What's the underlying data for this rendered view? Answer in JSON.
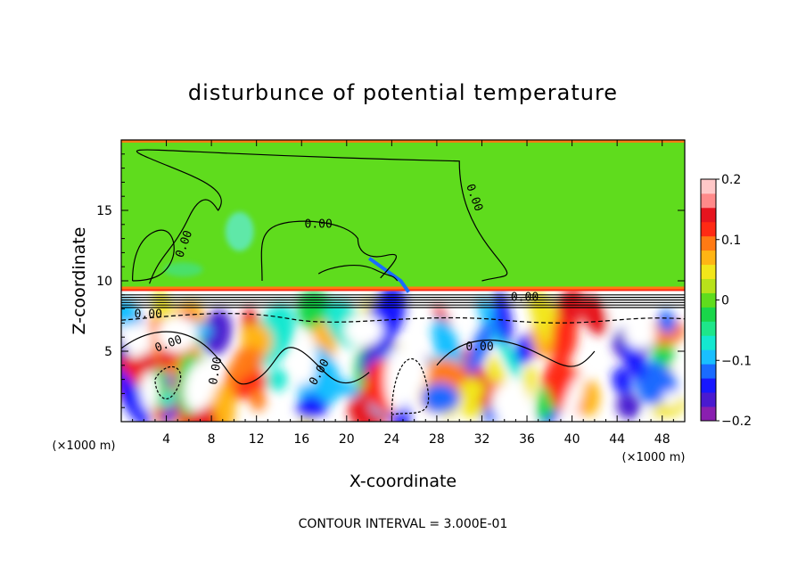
{
  "chart_data": {
    "type": "heatmap",
    "title": "disturbunce of potential temperature",
    "xlabel": "X-coordinate",
    "ylabel": "Z-coordinate",
    "x_unit": "(×1000 m)",
    "z_unit": "(×1000 m)",
    "xlim": [
      0,
      50
    ],
    "zlim": [
      0,
      20
    ],
    "x_ticks": [
      4,
      8,
      12,
      16,
      20,
      24,
      28,
      32,
      36,
      40,
      44,
      48
    ],
    "z_ticks": [
      5,
      10,
      15
    ],
    "colorbar": {
      "ticks": [
        0.2,
        0.1,
        0,
        -0.1,
        -0.2
      ],
      "tick_labels": [
        "0.2",
        "0.1",
        "0",
        "−0.1",
        "−0.2"
      ],
      "range": [
        -0.2,
        0.2
      ],
      "colors": [
        "#8a1fb0",
        "#4a1ad0",
        "#1818ff",
        "#1a6bff",
        "#19bfff",
        "#14e8d0",
        "#1ee68a",
        "#19d64a",
        "#5fdc1d",
        "#b8e21a",
        "#f2e61a",
        "#ffb514",
        "#ff7a14",
        "#ff2a14",
        "#e6141e",
        "#ff8a8a",
        "#ffc8c8"
      ]
    },
    "upper_layer": {
      "z_range": [
        9.4,
        20
      ],
      "value": 0.0
    },
    "contour_labels": [
      {
        "x": 5.6,
        "z": 12.6,
        "text": "0.00",
        "rot": -70
      },
      {
        "x": 17.5,
        "z": 14.0,
        "text": "0.00",
        "rot": 0
      },
      {
        "x": 31.3,
        "z": 15.9,
        "text": "0.00",
        "rot": 70
      },
      {
        "x": 35.8,
        "z": 8.8,
        "text": "0.00",
        "rot": 0
      },
      {
        "x": 2.4,
        "z": 7.6,
        "text": "0.00",
        "rot": 0
      },
      {
        "x": 4.2,
        "z": 5.5,
        "text": "0.00",
        "rot": -20
      },
      {
        "x": 8.4,
        "z": 3.6,
        "text": "0.00",
        "rot": -80
      },
      {
        "x": 17.6,
        "z": 3.5,
        "text": "0.00",
        "rot": -60
      },
      {
        "x": 31.8,
        "z": 5.3,
        "text": "0.00",
        "rot": 0
      }
    ],
    "contour_interval": "CONTOUR INTERVAL = 3.000E-01"
  }
}
